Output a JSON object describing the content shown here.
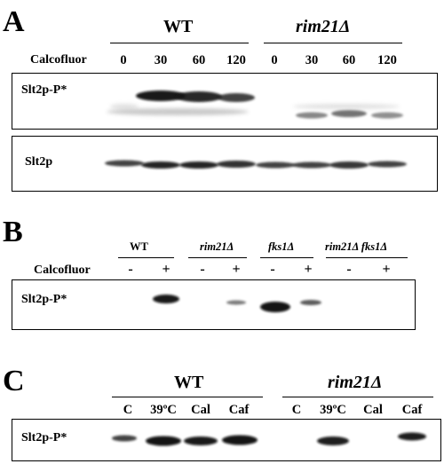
{
  "panel_a": {
    "letter": "A",
    "group_wt": "WT",
    "group_mut": "rim21Δ",
    "treatment_label": "Calcofluor",
    "lanes": [
      "0",
      "30",
      "60",
      "120",
      "0",
      "30",
      "60",
      "120"
    ],
    "blot1_label": "Slt2p-P*",
    "blot2_label": "Slt2p"
  },
  "panel_b": {
    "letter": "B",
    "groups": [
      "WT",
      "rim21Δ",
      "fks1Δ",
      "rim21Δ fks1Δ"
    ],
    "treatment_label": "Calcofluor",
    "signs": [
      "-",
      "+",
      "-",
      "+",
      "-",
      "+",
      "-",
      "+"
    ],
    "blot_label": "Slt2p-P*"
  },
  "panel_c": {
    "letter": "C",
    "group_wt": "WT",
    "group_mut": "rim21Δ",
    "lanes": [
      "C",
      "39ºC",
      "Cal",
      "Caf",
      "C",
      "39ºC",
      "Cal",
      "Caf"
    ],
    "blot_label": "Slt2p-P*"
  }
}
